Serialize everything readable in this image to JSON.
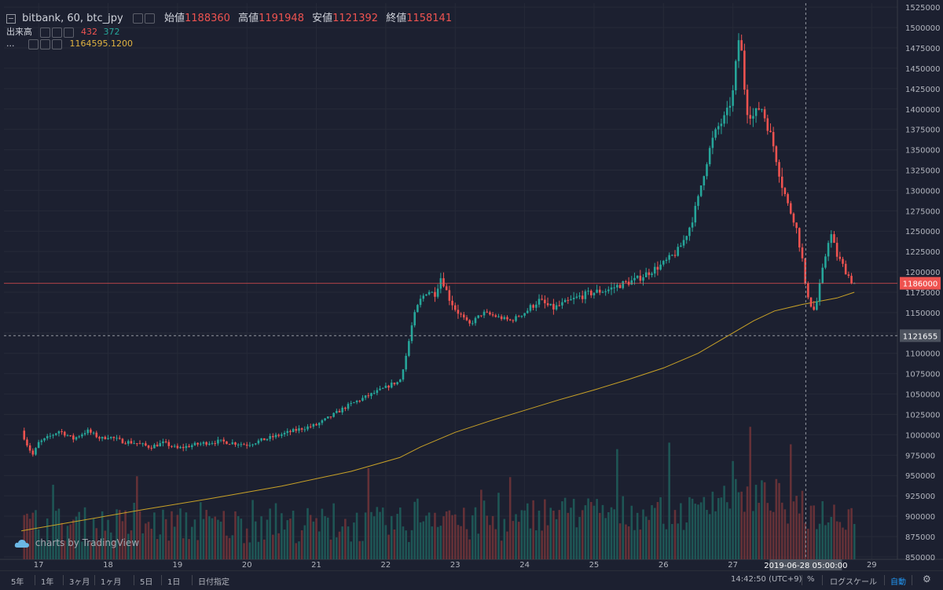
{
  "header": {
    "symbol": "bitbank, 60, btc_jpy",
    "open_label": "始値",
    "open_value": "1188360",
    "high_label": "高値",
    "high_value": "1191948",
    "low_label": "安値",
    "low_value": "1121392",
    "close_label": "終値",
    "close_value": "1158141"
  },
  "volume_legend": {
    "label": "出来高",
    "value_a": "432",
    "value_b": "372"
  },
  "ma_legend": {
    "label": "...",
    "value": "1164595.1200"
  },
  "watermark": "charts by TradingView",
  "price_line_label": "1186000",
  "crosshair_price_label": "1121655",
  "crosshair_date_label": "2019-06-28 05:00:00",
  "toolbar": {
    "ranges": [
      "5年",
      "1年",
      "3ヶ月",
      "1ヶ月",
      "5日",
      "1日",
      "日付指定"
    ],
    "time": "14:42:50 (UTC+9)",
    "percent": "%",
    "log": "ログスケール",
    "auto": "自動"
  },
  "colors": {
    "up": "#26a69a",
    "down": "#ef5350",
    "ma": "#c9a227",
    "background": "#1c2030",
    "grid": "#262a38",
    "price_line": "#ef5350"
  },
  "chart_data": {
    "type": "candlestick",
    "y_ticks": [
      850000,
      875000,
      900000,
      925000,
      950000,
      975000,
      1000000,
      1025000,
      1050000,
      1075000,
      1100000,
      1125000,
      1150000,
      1175000,
      1200000,
      1225000,
      1250000,
      1275000,
      1300000,
      1325000,
      1350000,
      1375000,
      1400000,
      1425000,
      1450000,
      1475000,
      1500000,
      1525000
    ],
    "ylim": [
      847000,
      1530000
    ],
    "x_ticks": [
      "17",
      "18",
      "19",
      "20",
      "21",
      "22",
      "23",
      "24",
      "25",
      "26",
      "27",
      "29"
    ],
    "price_line": 1186000,
    "crosshair_price": 1121655,
    "close_path": [
      [
        16.75,
        1005000
      ],
      [
        16.85,
        985000
      ],
      [
        16.92,
        975000
      ],
      [
        17.0,
        990000
      ],
      [
        17.1,
        995000
      ],
      [
        17.2,
        1000000
      ],
      [
        17.3,
        1005000
      ],
      [
        17.4,
        1000000
      ],
      [
        17.5,
        995000
      ],
      [
        17.6,
        1000000
      ],
      [
        17.7,
        1005000
      ],
      [
        17.8,
        1000000
      ],
      [
        17.9,
        995000
      ],
      [
        18.0,
        998000
      ],
      [
        18.2,
        992000
      ],
      [
        18.4,
        990000
      ],
      [
        18.6,
        985000
      ],
      [
        18.8,
        990000
      ],
      [
        19.0,
        983000
      ],
      [
        19.2,
        987000
      ],
      [
        19.4,
        990000
      ],
      [
        19.6,
        992000
      ],
      [
        19.8,
        990000
      ],
      [
        20.0,
        988000
      ],
      [
        20.2,
        993000
      ],
      [
        20.4,
        998000
      ],
      [
        20.6,
        1003000
      ],
      [
        20.8,
        1008000
      ],
      [
        21.0,
        1012000
      ],
      [
        21.2,
        1022000
      ],
      [
        21.4,
        1033000
      ],
      [
        21.6,
        1042000
      ],
      [
        21.8,
        1050000
      ],
      [
        22.0,
        1058000
      ],
      [
        22.1,
        1063000
      ],
      [
        22.2,
        1065000
      ],
      [
        22.3,
        1100000
      ],
      [
        22.4,
        1145000
      ],
      [
        22.5,
        1165000
      ],
      [
        22.6,
        1178000
      ],
      [
        22.7,
        1172000
      ],
      [
        22.8,
        1195000
      ],
      [
        22.9,
        1170000
      ],
      [
        23.0,
        1155000
      ],
      [
        23.2,
        1135000
      ],
      [
        23.4,
        1150000
      ],
      [
        23.6,
        1145000
      ],
      [
        23.8,
        1140000
      ],
      [
        24.0,
        1150000
      ],
      [
        24.2,
        1165000
      ],
      [
        24.4,
        1155000
      ],
      [
        24.6,
        1162000
      ],
      [
        24.8,
        1170000
      ],
      [
        25.0,
        1175000
      ],
      [
        25.2,
        1178000
      ],
      [
        25.4,
        1185000
      ],
      [
        25.6,
        1190000
      ],
      [
        25.8,
        1200000
      ],
      [
        26.0,
        1210000
      ],
      [
        26.2,
        1225000
      ],
      [
        26.3,
        1240000
      ],
      [
        26.4,
        1260000
      ],
      [
        26.5,
        1290000
      ],
      [
        26.6,
        1330000
      ],
      [
        26.7,
        1360000
      ],
      [
        26.8,
        1380000
      ],
      [
        26.9,
        1390000
      ],
      [
        27.0,
        1420000
      ],
      [
        27.05,
        1460000
      ],
      [
        27.1,
        1498000
      ],
      [
        27.15,
        1440000
      ],
      [
        27.2,
        1400000
      ],
      [
        27.3,
        1390000
      ],
      [
        27.4,
        1405000
      ],
      [
        27.5,
        1380000
      ],
      [
        27.6,
        1350000
      ],
      [
        27.7,
        1310000
      ],
      [
        27.8,
        1280000
      ],
      [
        27.9,
        1260000
      ],
      [
        28.0,
        1215000
      ],
      [
        28.05,
        1175000
      ],
      [
        28.1,
        1170000
      ],
      [
        28.15,
        1150000
      ],
      [
        28.2,
        1160000
      ],
      [
        28.3,
        1205000
      ],
      [
        28.4,
        1250000
      ],
      [
        28.5,
        1220000
      ],
      [
        28.6,
        1205000
      ],
      [
        28.7,
        1190000
      ],
      [
        28.75,
        1186000
      ]
    ],
    "moving_average": [
      [
        16.75,
        882000
      ],
      [
        17.5,
        893000
      ],
      [
        18.5,
        908000
      ],
      [
        19.5,
        922000
      ],
      [
        20.5,
        937000
      ],
      [
        21.5,
        955000
      ],
      [
        22.2,
        972000
      ],
      [
        22.5,
        985000
      ],
      [
        23.0,
        1003000
      ],
      [
        23.5,
        1017000
      ],
      [
        24.0,
        1030000
      ],
      [
        24.5,
        1043000
      ],
      [
        25.0,
        1055000
      ],
      [
        25.5,
        1068000
      ],
      [
        26.0,
        1082000
      ],
      [
        26.5,
        1100000
      ],
      [
        27.0,
        1125000
      ],
      [
        27.3,
        1140000
      ],
      [
        27.6,
        1152000
      ],
      [
        28.0,
        1160000
      ],
      [
        28.5,
        1168000
      ],
      [
        28.75,
        1175000
      ]
    ],
    "date_axis": "day of month, June 2019"
  }
}
